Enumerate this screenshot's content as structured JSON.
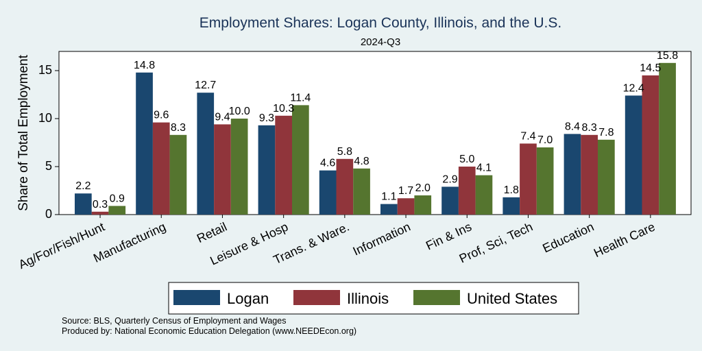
{
  "chart_data": {
    "type": "bar",
    "title": "Employment Shares: Logan County, Illinois, and the U.S.",
    "subtitle": "2024-Q3",
    "ylabel": "Share of Total Employment",
    "xlabel": "",
    "ylim": [
      0,
      17
    ],
    "yticks": [
      0,
      5,
      10,
      15
    ],
    "grid": false,
    "legend_position": "bottom",
    "categories": [
      "Ag/For/Fish/Hunt",
      "Manufacturing",
      "Retail",
      "Leisure & Hosp",
      "Trans. & Ware.",
      "Information",
      "Fin & Ins",
      "Prof, Sci, Tech",
      "Education",
      "Health Care"
    ],
    "series": [
      {
        "name": "Logan",
        "color": "#1a476f",
        "values": [
          2.2,
          14.8,
          12.7,
          9.3,
          4.6,
          1.1,
          2.9,
          1.8,
          8.4,
          12.4
        ],
        "labels": [
          "2.2",
          "14.8",
          "12.7",
          "9.3",
          "4.6",
          "1.1",
          "2.9",
          "1.8",
          "8.4",
          "12.4"
        ]
      },
      {
        "name": "Illinois",
        "color": "#90353b",
        "values": [
          0.3,
          9.6,
          9.4,
          10.3,
          5.8,
          1.7,
          5.0,
          7.4,
          8.3,
          14.5
        ],
        "labels": [
          "0.3",
          "9.6",
          "9.4",
          "10.3",
          "5.8",
          "1.7",
          "5.0",
          "7.4",
          "8.3",
          "14.5"
        ]
      },
      {
        "name": "United States",
        "color": "#55752f",
        "values": [
          0.9,
          8.3,
          10.0,
          11.4,
          4.8,
          2.0,
          4.1,
          7.0,
          7.8,
          15.8
        ],
        "labels": [
          "0.9",
          "8.3",
          "10.0",
          "11.4",
          "4.8",
          "2.0",
          "4.1",
          "7.0",
          "7.8",
          "15.8"
        ]
      }
    ],
    "notes": [
      "Source: BLS, Quarterly Census of Employment and Wages",
      "Produced by: National Economic Education Delegation (www.NEEDEcon.org)"
    ]
  }
}
